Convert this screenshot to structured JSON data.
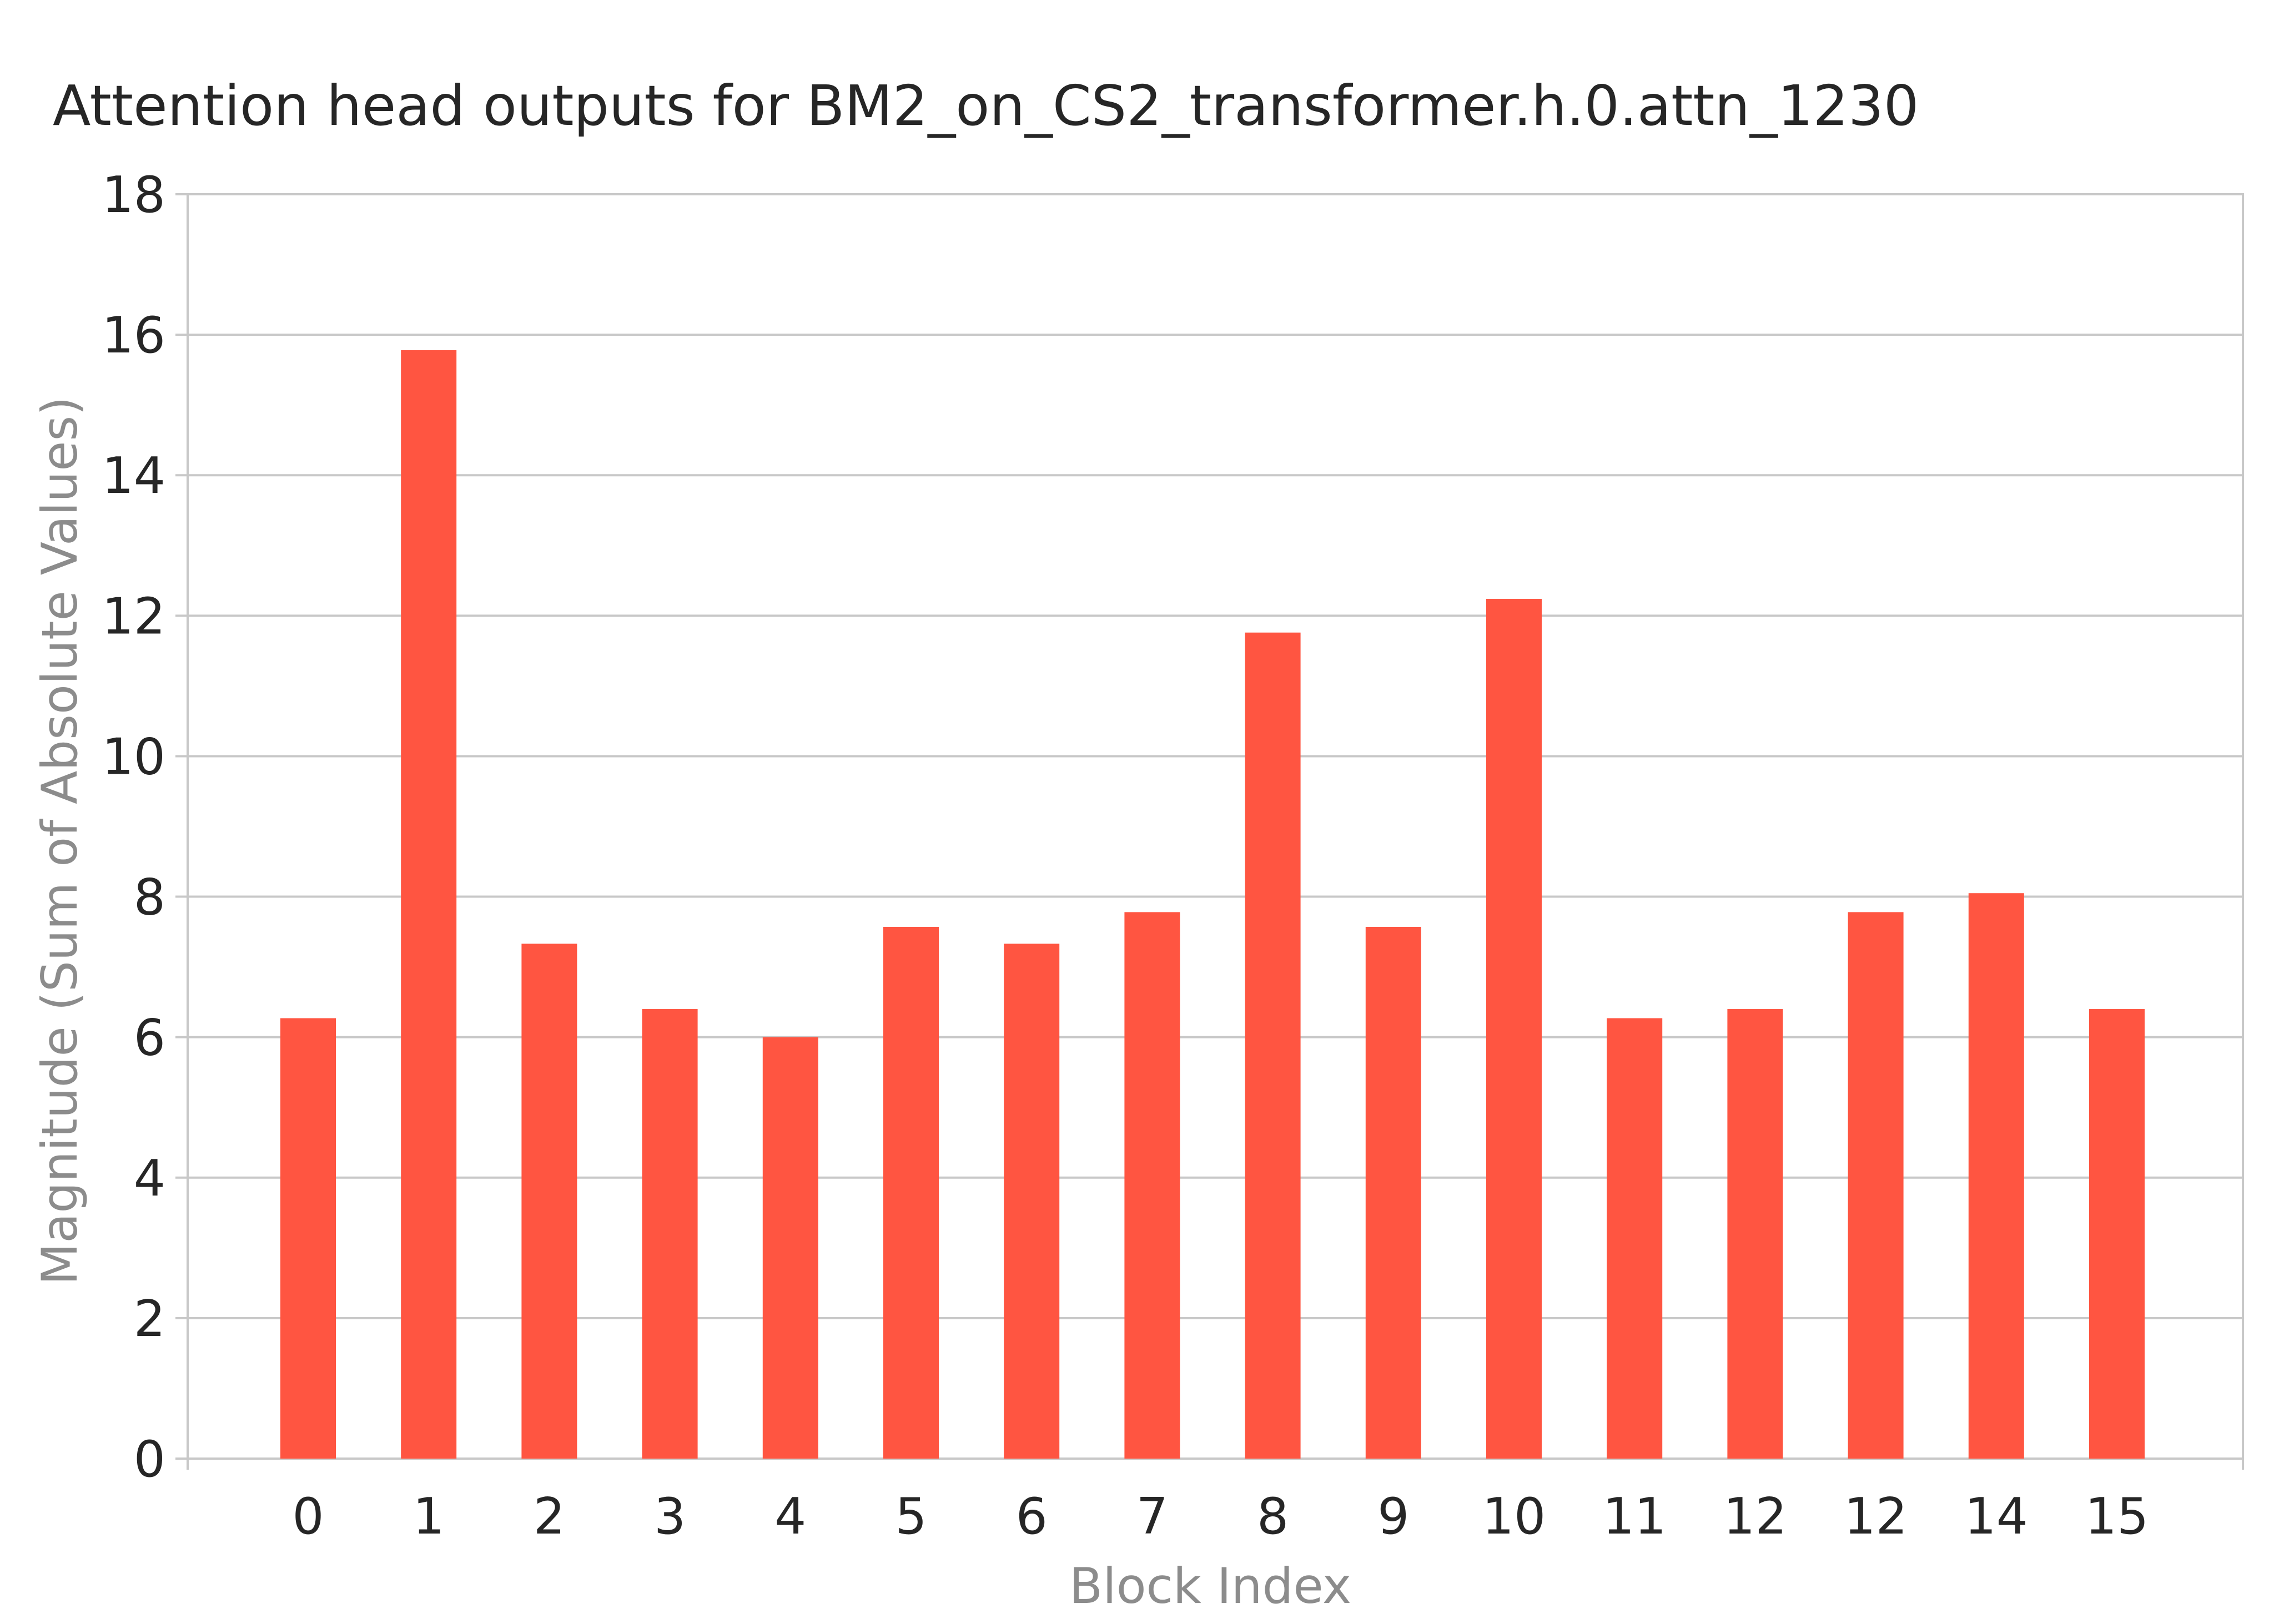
{
  "chart_data": {
    "type": "bar",
    "title": "Attention head outputs for BM2_on_CS2_transformer.h.0.attn_1230",
    "xlabel": "Block Index",
    "ylabel": "Magnitude (Sum of Absolute Values)",
    "categories": [
      "0",
      "1",
      "2",
      "3",
      "4",
      "5",
      "6",
      "7",
      "8",
      "9",
      "10",
      "11",
      "12",
      "12",
      "14",
      "15"
    ],
    "values": [
      6.27,
      15.78,
      7.33,
      6.4,
      6.0,
      7.57,
      7.33,
      7.78,
      11.76,
      7.57,
      12.24,
      6.27,
      6.4,
      7.78,
      8.05,
      6.4
    ],
    "ylim": [
      0,
      18
    ],
    "yticks": [
      "0",
      "2",
      "4",
      "6",
      "8",
      "10",
      "12",
      "14",
      "16",
      "18"
    ],
    "grid": true,
    "bar_color": "#ff5541"
  }
}
